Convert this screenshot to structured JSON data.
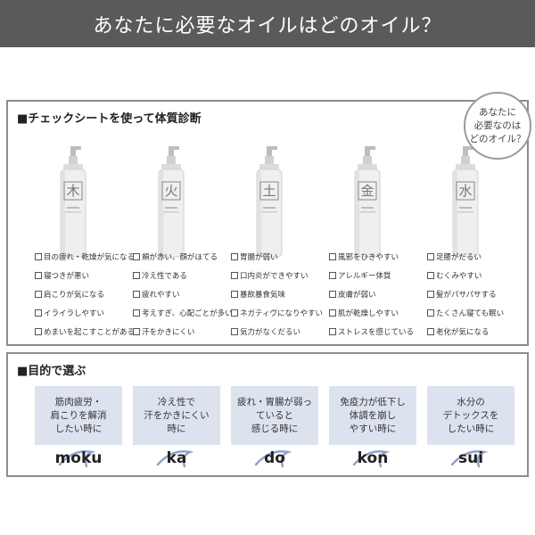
{
  "header": {
    "title": "あなたに必要なオイルはどのオイル？"
  },
  "section1": {
    "title": "■チェックシートを使って体質診断",
    "badge": [
      "あなたに",
      "必要なのは",
      "どのオイル？"
    ],
    "columns": [
      {
        "icon": "moku-kanji-icon",
        "kanji": "木",
        "items": [
          "目の疲れ・乾燥が気になる",
          "寝つきが悪い",
          "肩こりが気になる",
          "イライラしやすい",
          "めまいを起こすことがある"
        ]
      },
      {
        "icon": "ka-kanji-icon",
        "kanji": "火",
        "items": [
          "頬が赤い、顔がほてる",
          "冷え性である",
          "疲れやすい",
          "考えすぎ、心配ごとが多い",
          "汗をかきにくい"
        ]
      },
      {
        "icon": "do-kanji-icon",
        "kanji": "土",
        "items": [
          "胃腸が弱い",
          "口内炎ができやすい",
          "暴飲暴食気味",
          "ネガティヴになりやすい",
          "気力がなくだるい"
        ]
      },
      {
        "icon": "kon-kanji-icon",
        "kanji": "金",
        "items": [
          "風邪をひきやすい",
          "アレルギー体質",
          "皮膚が弱い",
          "肌が乾燥しやすい",
          "ストレスを感じている"
        ]
      },
      {
        "icon": "sui-kanji-icon",
        "kanji": "水",
        "items": [
          "足腰がだるい",
          "むくみやすい",
          "髪がパサパサする",
          "たくさん寝ても眠い",
          "老化が気になる"
        ]
      }
    ]
  },
  "section2": {
    "title": "■目的で選ぶ",
    "cards": [
      {
        "text": "筋肉疲労・\n肩こりを解消\nしたい時に",
        "name": "moku"
      },
      {
        "text": "冷え性で\n汗をかきにくい\n時に",
        "name": "ka"
      },
      {
        "text": "疲れ・胃腸が弱っ\nていると\n感じる時に",
        "name": "do"
      },
      {
        "text": "免疫力が低下し\n体調を崩し\nやすい時に",
        "name": "kon"
      },
      {
        "text": "水分の\nデトックスを\nしたい時に",
        "name": "sui"
      }
    ]
  },
  "colors": {
    "header_bg": "#5a5a5a",
    "card_bg": "#dce3ef",
    "swoosh": "#8fa3c7"
  }
}
